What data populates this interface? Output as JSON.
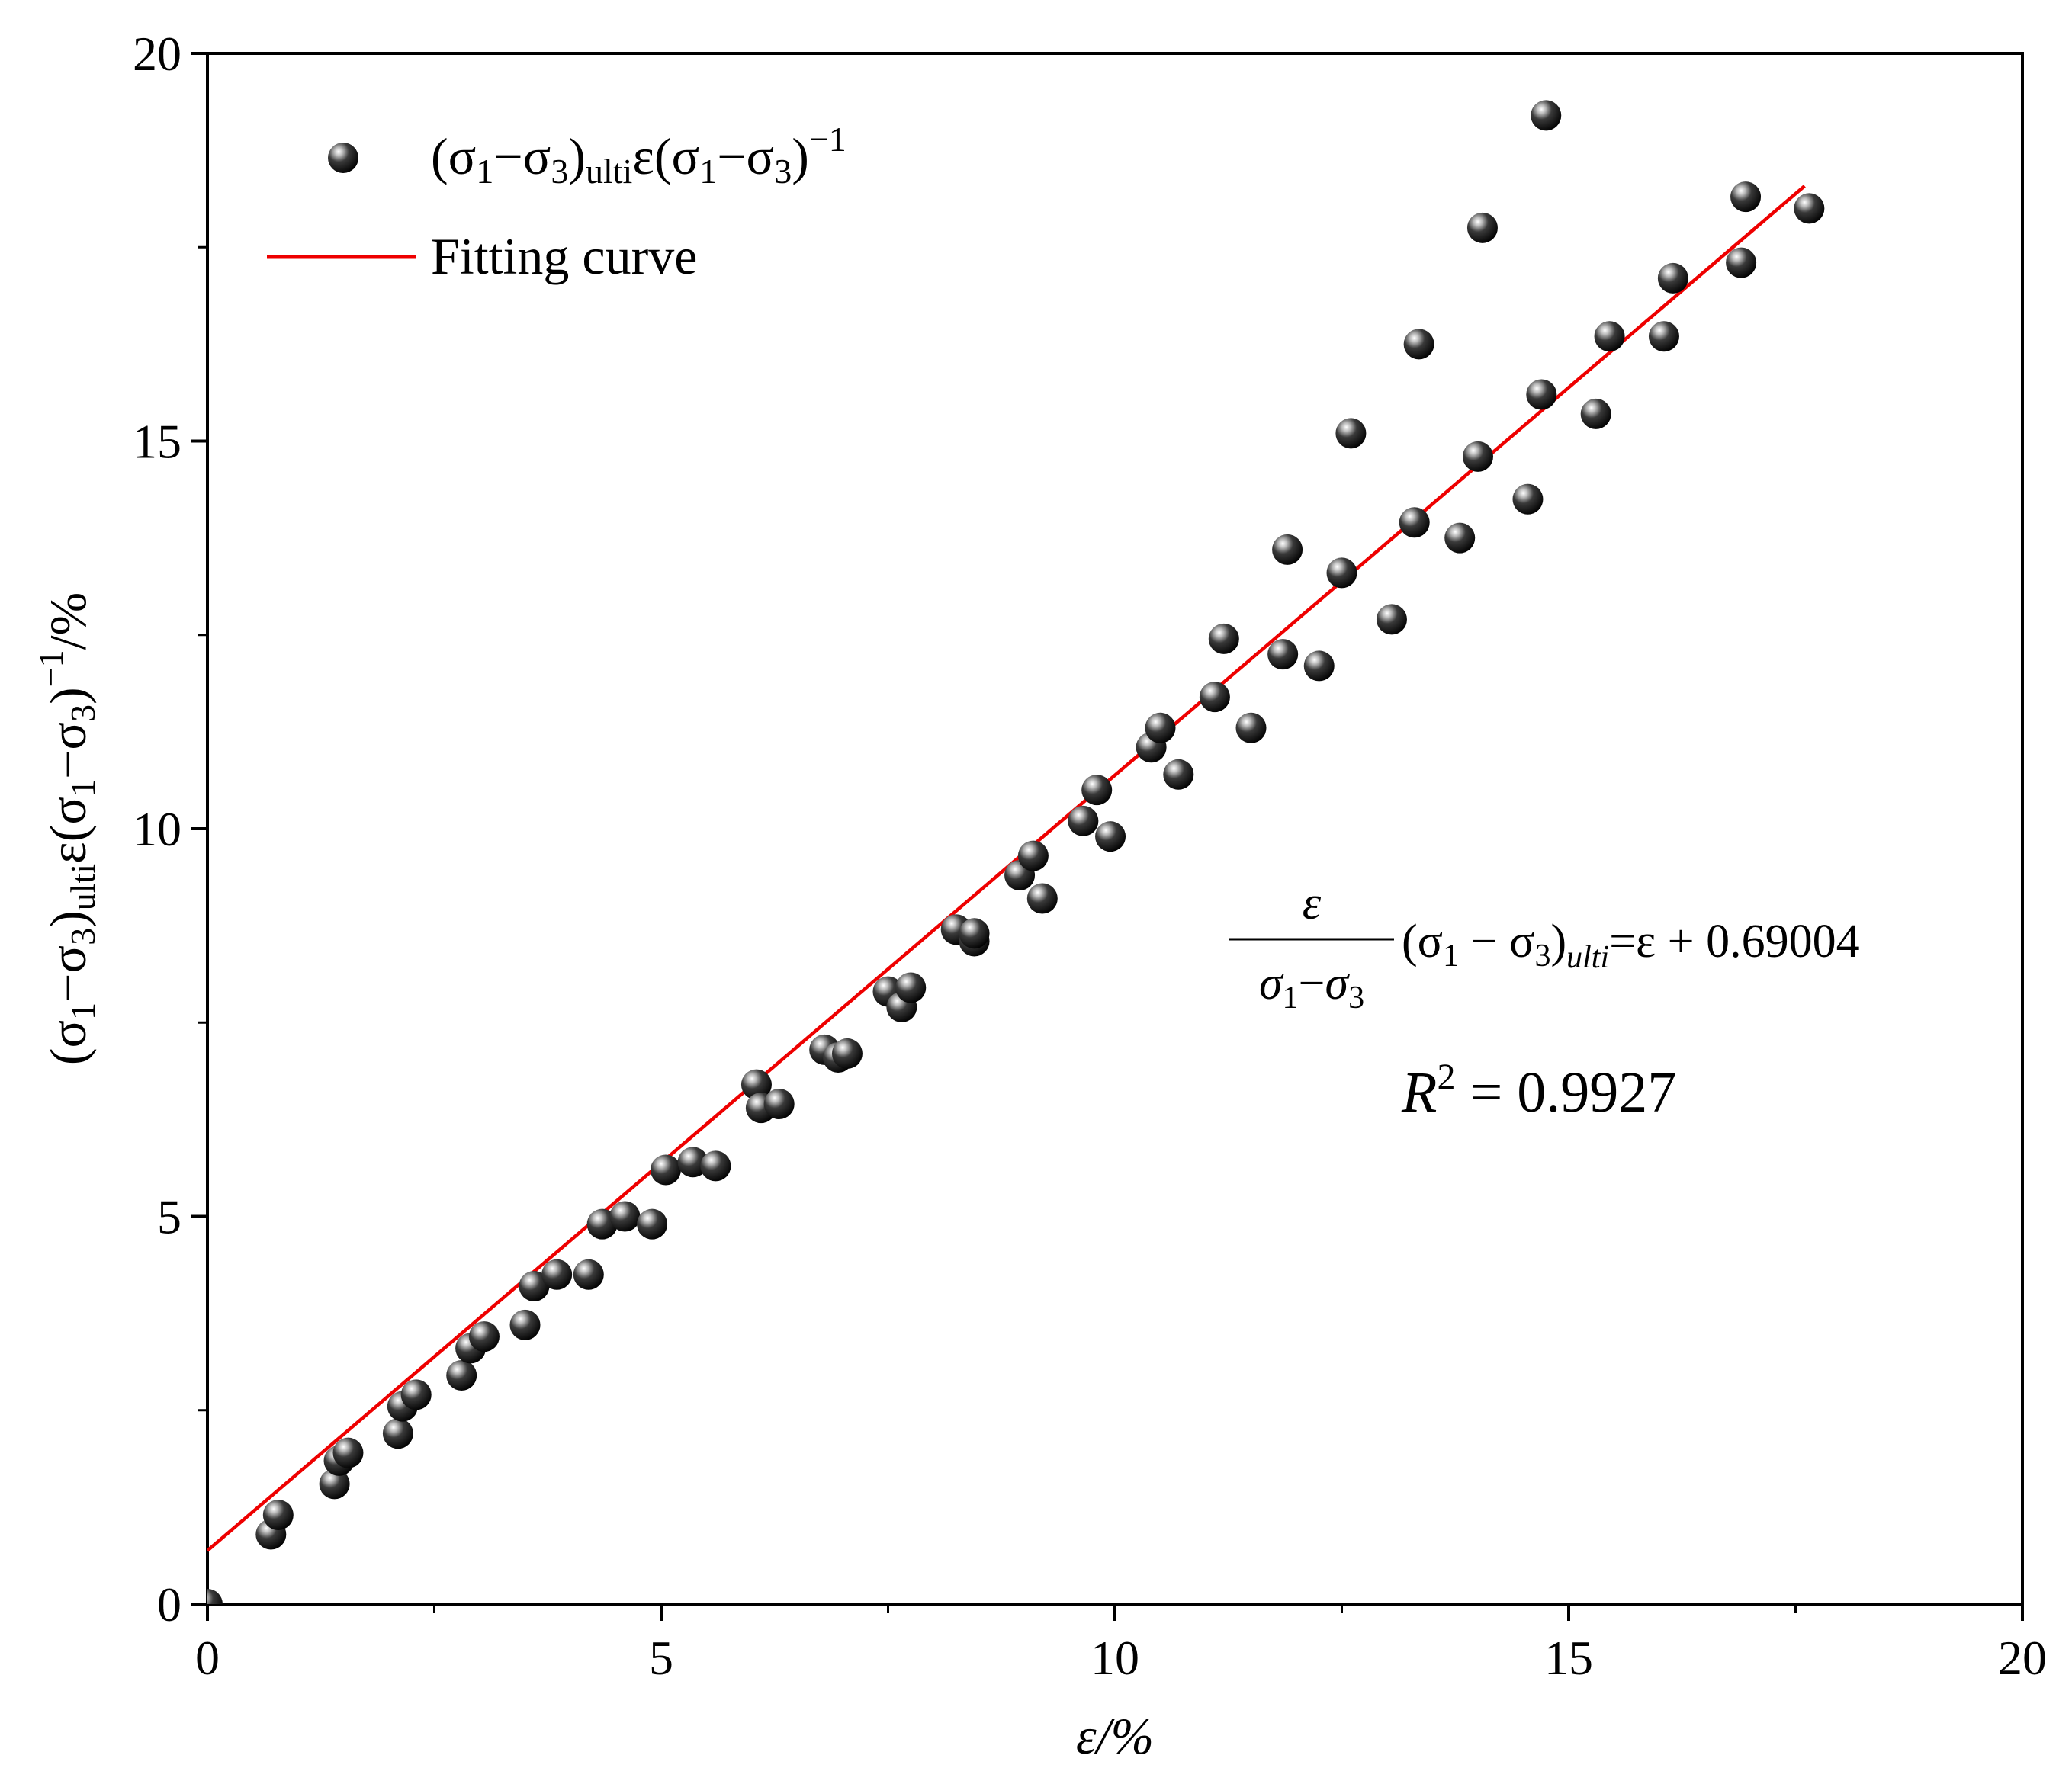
{
  "chart_data": {
    "type": "scatter",
    "xlabel": "ε/%",
    "ylabel": {
      "open": "(σ",
      "sub1": "1",
      "mid1": "−σ",
      "sub2": "3",
      "close1": ")",
      "subUlti": "ulti",
      "mid2": "ε(σ",
      "sub3": "1",
      "mid3": "−σ",
      "sub4": "3",
      "close2": ")",
      "sup": "−1",
      "unit": "/%"
    },
    "xlim": [
      0,
      20
    ],
    "ylim": [
      0,
      20
    ],
    "xticks": [
      "0",
      "5",
      "10",
      "15",
      "20"
    ],
    "yticks": [
      "0",
      "5",
      "10",
      "15",
      "20"
    ],
    "grid": false,
    "legend": {
      "placement": "top-left",
      "scatter_label": {
        "open": "(σ",
        "sub1": "1",
        "mid1": "−σ",
        "sub2": "3",
        "close1": ")",
        "subUlti": "ulti",
        "mid2": "ε(σ",
        "sub3": "1",
        "mid3": "−σ",
        "sub4": "3",
        "close2": ")",
        "sup": "−1"
      },
      "line_label": "Fitting curve"
    },
    "series": [
      {
        "name": "(σ1−σ3)ultiε(σ1−σ3)−1",
        "kind": "scatter",
        "color": "#000000",
        "points": [
          [
            0.0,
            0.0
          ],
          [
            0.7,
            0.9
          ],
          [
            0.78,
            1.15
          ],
          [
            1.4,
            1.55
          ],
          [
            1.45,
            1.85
          ],
          [
            1.55,
            1.95
          ],
          [
            2.1,
            2.2
          ],
          [
            2.15,
            2.55
          ],
          [
            2.3,
            2.7
          ],
          [
            2.8,
            2.95
          ],
          [
            2.9,
            3.3
          ],
          [
            3.05,
            3.45
          ],
          [
            3.5,
            3.6
          ],
          [
            3.6,
            4.1
          ],
          [
            3.85,
            4.25
          ],
          [
            4.2,
            4.25
          ],
          [
            4.35,
            4.9
          ],
          [
            4.6,
            5.0
          ],
          [
            4.9,
            4.9
          ],
          [
            5.05,
            5.6
          ],
          [
            5.35,
            5.7
          ],
          [
            5.6,
            5.65
          ],
          [
            6.05,
            6.7
          ],
          [
            6.1,
            6.4
          ],
          [
            6.3,
            6.45
          ],
          [
            6.8,
            7.15
          ],
          [
            6.95,
            7.05
          ],
          [
            7.05,
            7.1
          ],
          [
            7.5,
            7.9
          ],
          [
            7.65,
            7.7
          ],
          [
            7.75,
            7.95
          ],
          [
            8.25,
            8.7
          ],
          [
            8.45,
            8.55
          ],
          [
            8.45,
            8.65
          ],
          [
            8.95,
            9.4
          ],
          [
            9.1,
            9.65
          ],
          [
            9.2,
            9.1
          ],
          [
            9.65,
            10.1
          ],
          [
            9.8,
            10.5
          ],
          [
            9.95,
            9.9
          ],
          [
            10.4,
            11.05
          ],
          [
            10.5,
            11.3
          ],
          [
            10.7,
            10.7
          ],
          [
            11.1,
            11.7
          ],
          [
            11.2,
            12.45
          ],
          [
            11.5,
            11.3
          ],
          [
            11.85,
            12.25
          ],
          [
            11.9,
            13.6
          ],
          [
            12.25,
            12.1
          ],
          [
            12.5,
            13.3
          ],
          [
            12.6,
            15.1
          ],
          [
            13.05,
            12.7
          ],
          [
            13.3,
            13.95
          ],
          [
            13.35,
            16.25
          ],
          [
            13.8,
            13.75
          ],
          [
            14.0,
            14.8
          ],
          [
            14.05,
            17.75
          ],
          [
            14.55,
            14.25
          ],
          [
            14.7,
            15.6
          ],
          [
            14.75,
            19.2
          ],
          [
            15.3,
            15.35
          ],
          [
            15.45,
            16.35
          ],
          [
            16.05,
            16.35
          ],
          [
            16.15,
            17.1
          ],
          [
            16.9,
            17.3
          ],
          [
            16.95,
            18.15
          ],
          [
            17.65,
            18.0
          ]
        ]
      },
      {
        "name": "Fitting curve",
        "kind": "line",
        "color": "#ee0000",
        "x": [
          0,
          17.6
        ],
        "y": [
          0.69004,
          18.29004
        ]
      }
    ],
    "annotations": {
      "eq_num": "ε",
      "eq_den": {
        "a": "σ",
        "a_sub": "1",
        "minus": "−",
        "b": "σ",
        "b_sub": "3"
      },
      "eq_rest": {
        "open": "(σ",
        "sub1": "1",
        "minus": " − σ",
        "sub2": "3",
        "close": ")",
        "sub_ulti": "ulti",
        "tail": "=ε + 0.69004"
      },
      "r2": {
        "r": "R",
        "sup": "2",
        "tail": " = 0.9927"
      }
    }
  }
}
